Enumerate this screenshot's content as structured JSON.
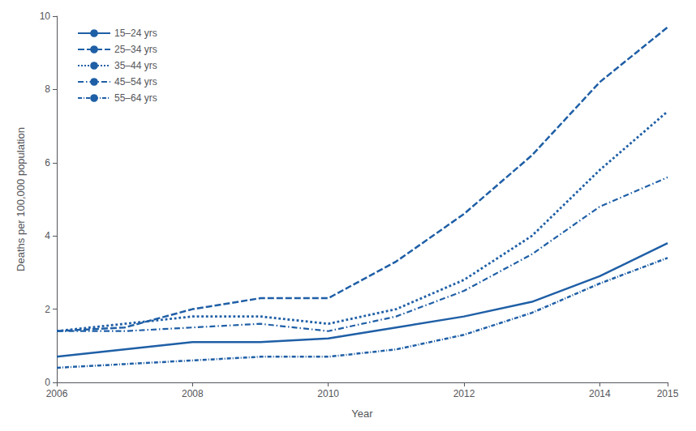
{
  "chart_data": {
    "type": "line",
    "xlabel": "Year",
    "ylabel": "Deaths per 100,000 population",
    "x": [
      2006,
      2007,
      2008,
      2009,
      2010,
      2011,
      2012,
      2013,
      2014,
      2015
    ],
    "series": [
      {
        "name": "15–24 yrs",
        "color": "#1F5FA6",
        "line_style": "solid",
        "values": [
          0.7,
          0.9,
          1.1,
          1.1,
          1.2,
          1.5,
          1.8,
          2.2,
          2.9,
          3.8
        ]
      },
      {
        "name": "25–34 yrs",
        "color": "#1F5FA6",
        "line_style": "dashed",
        "values": [
          1.4,
          1.5,
          2.0,
          2.3,
          2.3,
          3.3,
          4.6,
          6.2,
          8.2,
          9.7
        ]
      },
      {
        "name": "35–44 yrs",
        "color": "#1F5FA6",
        "line_style": "dotted",
        "values": [
          1.4,
          1.6,
          1.8,
          1.8,
          1.6,
          2.0,
          2.8,
          4.0,
          5.8,
          7.4
        ]
      },
      {
        "name": "45–54 yrs",
        "color": "#1F5FA6",
        "line_style": "dashdot",
        "values": [
          1.4,
          1.4,
          1.5,
          1.6,
          1.4,
          1.8,
          2.5,
          3.5,
          4.8,
          5.6
        ]
      },
      {
        "name": "55–64 yrs",
        "color": "#1F5FA6",
        "line_style": "longdashdot",
        "values": [
          0.4,
          0.5,
          0.6,
          0.7,
          0.7,
          0.9,
          1.3,
          1.9,
          2.7,
          3.4
        ]
      }
    ],
    "xlim": [
      2006,
      2015
    ],
    "xticks": [
      2006,
      2008,
      2010,
      2012,
      2014,
      2015
    ],
    "ylim": [
      0,
      10
    ],
    "yticks": [
      0,
      2,
      4,
      6,
      8,
      10
    ],
    "grid": false,
    "legend": "upper left"
  }
}
